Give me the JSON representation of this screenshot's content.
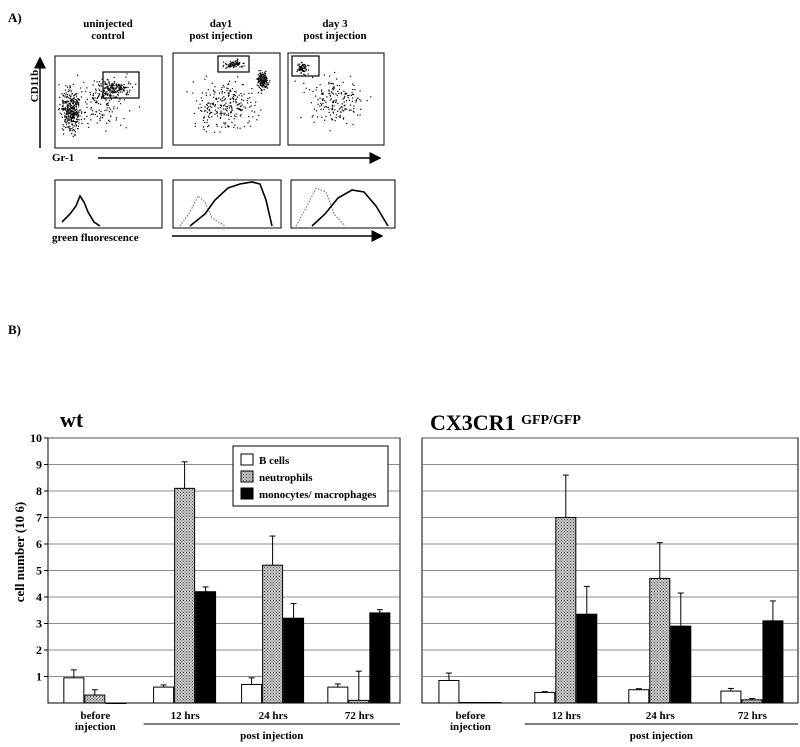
{
  "panel_a": {
    "label": "A)",
    "column_headers": [
      "uninjected\ncontrol",
      "day1\npost injection",
      "day 3\npost injection"
    ],
    "y_axis_label": "CD11b",
    "x_axis_label": "Gr-1",
    "histogram_axis_label": "green fluorescence"
  },
  "panel_b": {
    "label": "B)"
  },
  "chart_data": [
    {
      "type": "bar",
      "title": "wt",
      "ylabel": "cell number  (10 6)",
      "ylim": [
        0,
        10
      ],
      "yticks": [
        1,
        2,
        3,
        4,
        5,
        6,
        7,
        8,
        9,
        10
      ],
      "grid": true,
      "legend_position": "top-right",
      "categories": [
        "before\ninjection",
        "12 hrs",
        "24 hrs",
        "72 hrs"
      ],
      "group_label": "post injection",
      "series": [
        {
          "name": "B cells",
          "color": "#ffffff",
          "values": [
            0.95,
            0.6,
            0.7,
            0.6
          ],
          "errors": [
            0.3,
            0.08,
            0.25,
            0.12
          ]
        },
        {
          "name": "neutrophils",
          "color": "#a8a8a8",
          "values": [
            0.3,
            8.1,
            5.2,
            0.1
          ],
          "errors": [
            0.2,
            1.0,
            1.1,
            1.1
          ]
        },
        {
          "name": "monocytes/ macrophages",
          "color": "#000000",
          "values": [
            0,
            4.2,
            3.2,
            3.4
          ],
          "errors": [
            0,
            0.18,
            0.55,
            0.12
          ]
        }
      ]
    },
    {
      "type": "bar",
      "title": "CX3CR1",
      "title_sup": "GFP/GFP",
      "ylim": [
        0,
        10
      ],
      "grid": true,
      "categories": [
        "before\ninjection",
        "12 hrs",
        "24 hrs",
        "72 hrs"
      ],
      "group_label": "post injection",
      "series": [
        {
          "name": "B cells",
          "color": "#ffffff",
          "values": [
            0.85,
            0.4,
            0.5,
            0.45
          ],
          "errors": [
            0.28,
            0.03,
            0.04,
            0.1
          ]
        },
        {
          "name": "neutrophils",
          "color": "#a8a8a8",
          "values": [
            0.02,
            7.0,
            4.7,
            0.12
          ],
          "errors": [
            0,
            1.6,
            1.35,
            0.05
          ]
        },
        {
          "name": "monocytes/ macrophages",
          "color": "#000000",
          "values": [
            0.02,
            3.35,
            2.9,
            3.1
          ],
          "errors": [
            0,
            1.05,
            1.25,
            0.75
          ]
        }
      ]
    }
  ]
}
